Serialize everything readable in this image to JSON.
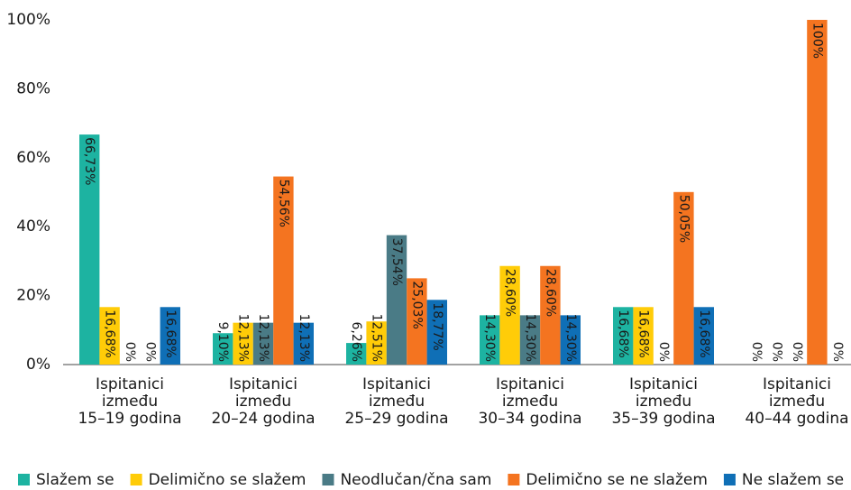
{
  "chart_data": {
    "type": "bar",
    "categories": [
      [
        "Ispitanici",
        "između",
        "15–19 godina"
      ],
      [
        "Ispitanici",
        "između",
        "20–24 godina"
      ],
      [
        "Ispitanici",
        "između",
        "25–29 godina"
      ],
      [
        "Ispitanici",
        "između",
        "30–34 godina"
      ],
      [
        "Ispitanici",
        "između",
        "35–39 godina"
      ],
      [
        "Ispitanici",
        "između",
        "40–44 godina"
      ]
    ],
    "series": [
      {
        "name": "Slažem se",
        "color": "#1db3a1",
        "values": [
          66.73,
          9.1,
          6.26,
          14.3,
          16.68,
          0
        ],
        "value_labels": [
          "66,73%",
          "9,10%",
          "6,26%",
          "14,30%",
          "16,68%",
          "0%"
        ]
      },
      {
        "name": "Delimično se slažem",
        "color": "#ffcc08",
        "values": [
          16.68,
          12.13,
          12.51,
          28.6,
          16.68,
          0
        ],
        "value_labels": [
          "16,68%",
          "12,13%",
          "12,51%",
          "28,60%",
          "16,68%",
          "0%"
        ]
      },
      {
        "name": "Neodlučan/čna sam",
        "color": "#4a7b86",
        "values": [
          0,
          12.13,
          37.54,
          14.3,
          0,
          0
        ],
        "value_labels": [
          "0%",
          "12,13%",
          "37,54%",
          "14,30%",
          "0%",
          "0%"
        ]
      },
      {
        "name": "Delimično se ne slažem",
        "color": "#f47420",
        "values": [
          0,
          54.56,
          25.03,
          28.6,
          50.05,
          100
        ],
        "value_labels": [
          "0%",
          "54,56%",
          "25,03%",
          "28,60%",
          "50,05%",
          "100%"
        ]
      },
      {
        "name": "Ne slažem se",
        "color": "#0f6fb6",
        "values": [
          16.68,
          12.13,
          18.77,
          14.3,
          16.68,
          0
        ],
        "value_labels": [
          "16,68%",
          "12,13%",
          "18,77%",
          "14,30%",
          "16,68%",
          "0%"
        ]
      }
    ],
    "ylim": [
      0,
      100
    ],
    "yticks": [
      {
        "value": 0,
        "label": "0%"
      },
      {
        "value": 20,
        "label": "20%"
      },
      {
        "value": 40,
        "label": "40%"
      },
      {
        "value": 60,
        "label": "60%"
      },
      {
        "value": 80,
        "label": "80%"
      },
      {
        "value": 100,
        "label": "100%"
      }
    ],
    "legend": "bottom"
  }
}
